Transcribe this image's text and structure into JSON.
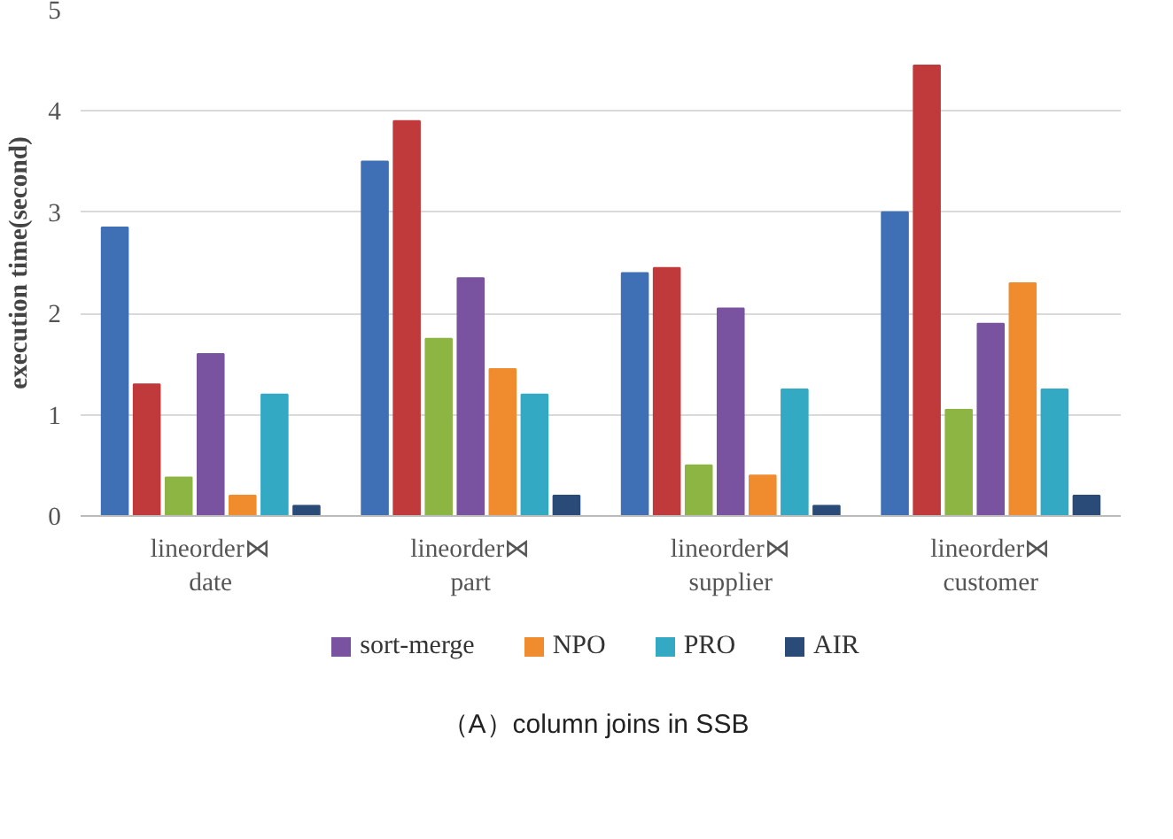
{
  "chart_data": {
    "type": "bar",
    "ylabel": "execution time(second)",
    "categories": [
      "lineorder⋈\ndate",
      "lineorder⋈\npart",
      "lineorder⋈\nsupplier",
      "lineorder⋈\ncustomer"
    ],
    "series": [
      {
        "color": "#3f6fb5",
        "values": [
          2.85,
          3.5,
          2.4,
          3.0
        ]
      },
      {
        "color": "#c0393b",
        "values": [
          1.3,
          3.9,
          2.45,
          4.45
        ]
      },
      {
        "color": "#8db544",
        "values": [
          0.38,
          1.75,
          0.5,
          1.05
        ]
      },
      {
        "name": "sort-merge",
        "color": "#7a53a0",
        "values": [
          1.6,
          2.35,
          2.05,
          1.9
        ]
      },
      {
        "name": "NPO",
        "color": "#f08c2e",
        "values": [
          0.2,
          1.45,
          0.4,
          2.3
        ]
      },
      {
        "name": "PRO",
        "color": "#33a9c4",
        "values": [
          1.2,
          1.2,
          1.25,
          1.25
        ]
      },
      {
        "name": "AIR",
        "color": "#2a4a78",
        "values": [
          0.1,
          0.2,
          0.1,
          0.2
        ]
      }
    ],
    "ylim": [
      0,
      5
    ],
    "yticks": [
      0,
      1,
      2,
      3,
      4,
      5
    ],
    "grid": "y",
    "legend": "bottom",
    "annotations": [
      "（A）column joins in SSB"
    ]
  }
}
